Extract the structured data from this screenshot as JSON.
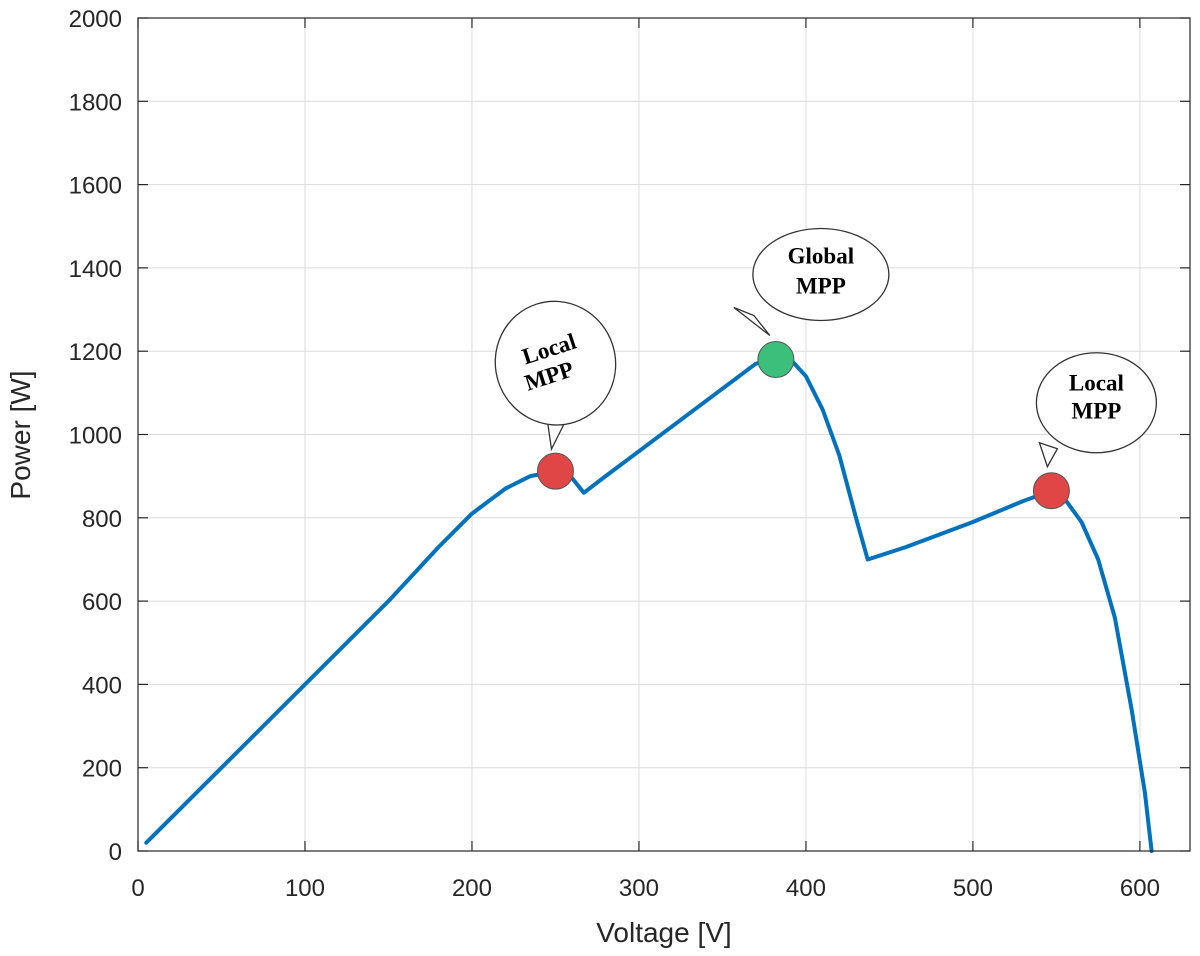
{
  "chart_data": {
    "type": "line",
    "title": "",
    "xlabel": "Voltage [V]",
    "ylabel": "Power [W]",
    "xlim": [
      0,
      630
    ],
    "ylim": [
      0,
      2000
    ],
    "xticks": [
      0,
      100,
      200,
      300,
      400,
      500,
      600
    ],
    "yticks": [
      0,
      200,
      400,
      600,
      800,
      1000,
      1200,
      1400,
      1600,
      1800,
      2000
    ],
    "grid": true,
    "series": [
      {
        "color": "#0072BD",
        "x": [
          5,
          50,
          100,
          150,
          180,
          200,
          220,
          235,
          250,
          260,
          267,
          280,
          300,
          340,
          360,
          370,
          380,
          392,
          400,
          410,
          420,
          430,
          437,
          460,
          500,
          530,
          545,
          555,
          565,
          575,
          585,
          595,
          603,
          607
        ],
        "y": [
          20,
          200,
          400,
          600,
          730,
          810,
          870,
          900,
          912,
          895,
          860,
          900,
          960,
          1080,
          1140,
          1170,
          1180,
          1175,
          1140,
          1060,
          950,
          800,
          700,
          730,
          790,
          840,
          862,
          845,
          790,
          700,
          560,
          340,
          140,
          0
        ]
      }
    ],
    "markers": [
      {
        "x": 250,
        "y": 912,
        "color": "#E04646"
      },
      {
        "x": 382,
        "y": 1180,
        "color": "#3CBF7A"
      },
      {
        "x": 547,
        "y": 865,
        "color": "#E04646"
      }
    ],
    "annotations": [
      {
        "lines": [
          "Local",
          "MPP"
        ],
        "target": 0
      },
      {
        "lines": [
          "Global",
          "MPP"
        ],
        "target": 1
      },
      {
        "lines": [
          "Local",
          "MPP"
        ],
        "target": 2
      }
    ]
  }
}
